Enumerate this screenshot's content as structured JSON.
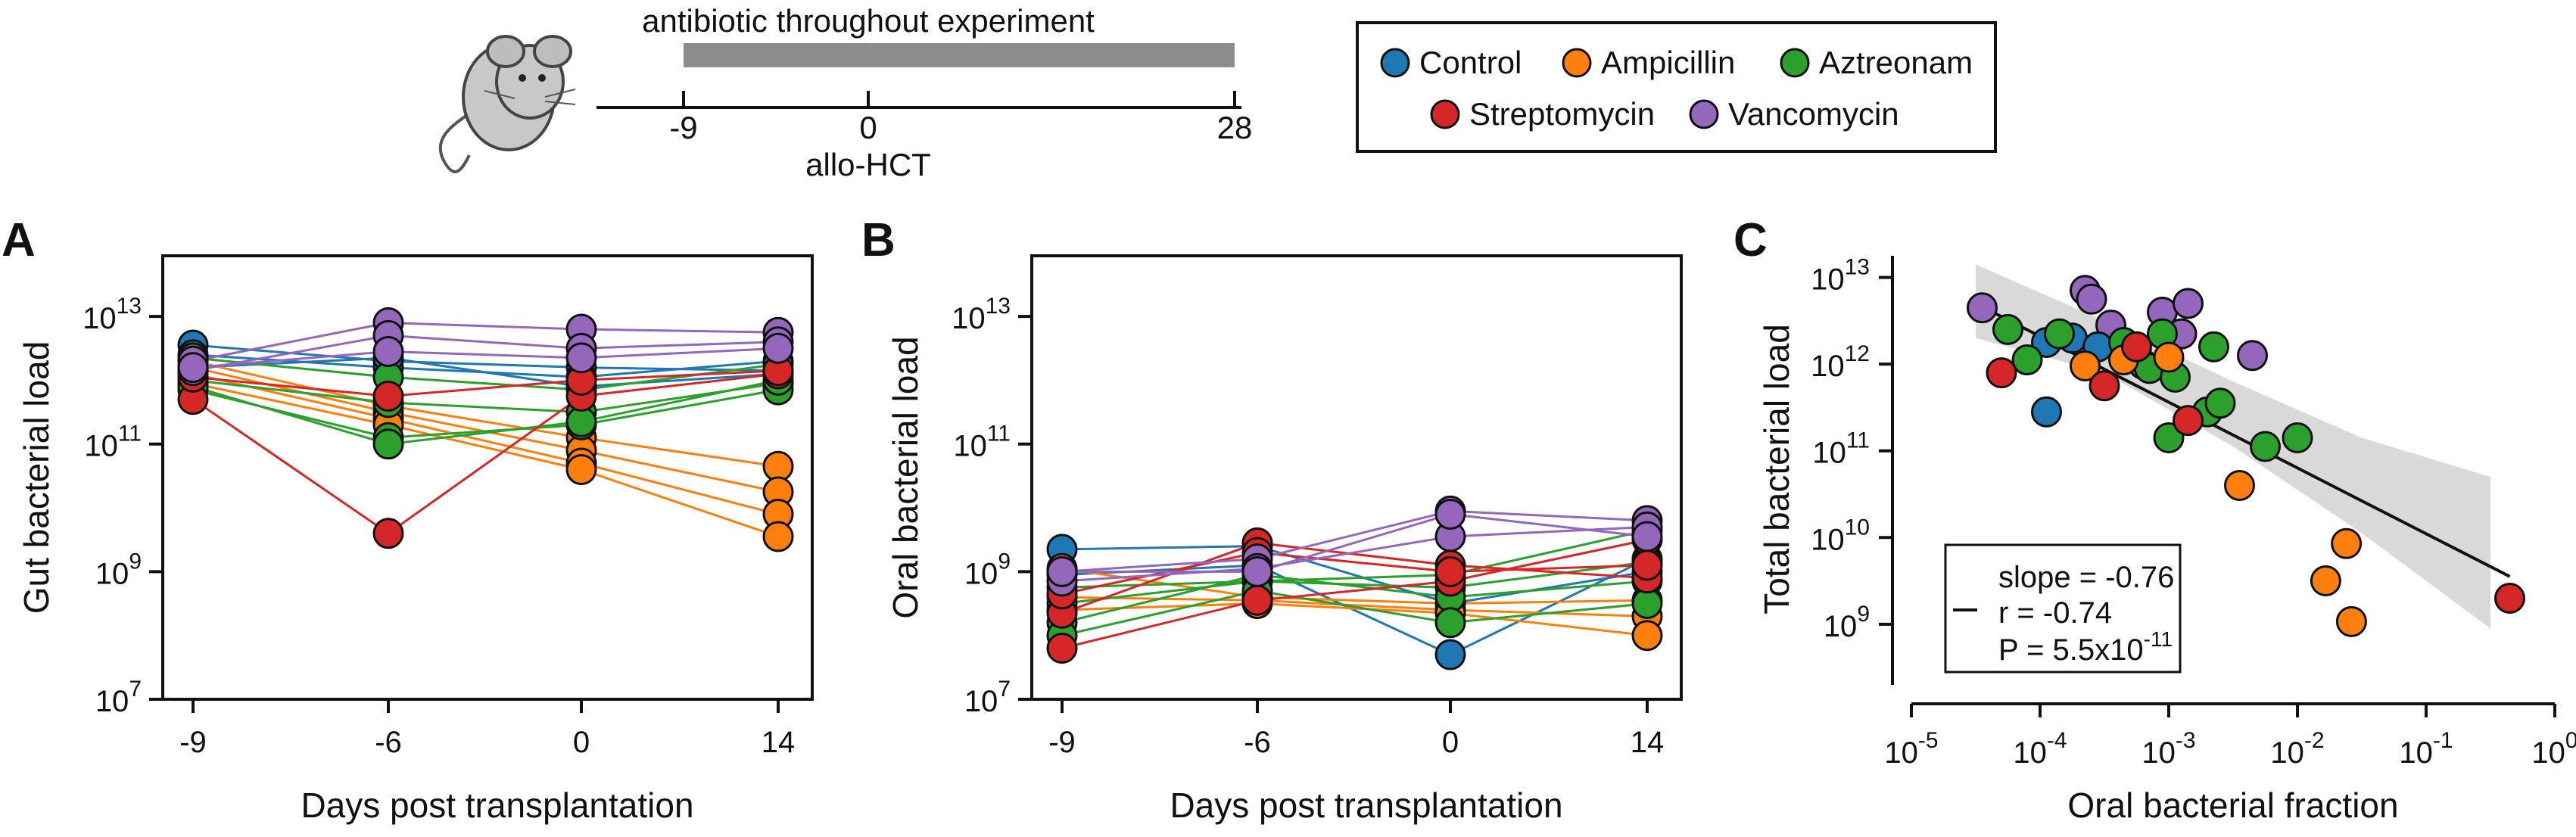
{
  "header": {
    "banner_label": "antibiotic throughout experiment",
    "timeline_ticks": [
      "-9",
      "0",
      "28"
    ],
    "event_label": "allo-HCT",
    "mouse_icon": "mouse-icon"
  },
  "legend": {
    "items": [
      {
        "name": "Control",
        "color": "#1f77b4"
      },
      {
        "name": "Ampicillin",
        "color": "#ff7f0e"
      },
      {
        "name": "Aztreonam",
        "color": "#2ca02c"
      },
      {
        "name": "Streptomycin",
        "color": "#d62728"
      },
      {
        "name": "Vancomycin",
        "color": "#9467bd"
      }
    ]
  },
  "chart_data": [
    {
      "panel": "A",
      "type": "line",
      "xlabel": "Days post transplantation",
      "ylabel": "Gut bacterial load",
      "x_tick_labels": [
        "-9",
        "-6",
        "0",
        "14"
      ],
      "y_scale": "log",
      "y_tick_exponents": [
        7,
        9,
        11,
        13
      ],
      "ylim_exponent": [
        7,
        13.95
      ],
      "grid": false,
      "series": [
        {
          "group": "Control",
          "values_log10": [
            12.55,
            12.3,
            12.2,
            12.15
          ]
        },
        {
          "group": "Control",
          "values_log10": [
            12.4,
            12.2,
            12.05,
            12.3
          ]
        },
        {
          "group": "Control",
          "values_log10": [
            12.2,
            12.35,
            11.9,
            12.1
          ]
        },
        {
          "group": "Ampicillin",
          "values_log10": [
            12.3,
            11.6,
            11.1,
            10.65
          ]
        },
        {
          "group": "Ampicillin",
          "values_log10": [
            12.2,
            11.5,
            10.9,
            10.25
          ]
        },
        {
          "group": "Ampicillin",
          "values_log10": [
            12.1,
            11.4,
            10.7,
            9.9
          ]
        },
        {
          "group": "Ampicillin",
          "values_log10": [
            11.95,
            11.3,
            10.6,
            9.55
          ]
        },
        {
          "group": "Aztreonam",
          "values_log10": [
            12.35,
            12.05,
            11.85,
            12.25
          ]
        },
        {
          "group": "Aztreonam",
          "values_log10": [
            12.0,
            11.65,
            11.5,
            11.95
          ]
        },
        {
          "group": "Aztreonam",
          "values_log10": [
            11.85,
            11.1,
            11.3,
            11.85
          ]
        },
        {
          "group": "Aztreonam",
          "values_log10": [
            11.9,
            11.0,
            11.35,
            12.0
          ]
        },
        {
          "group": "Streptomycin",
          "values_log10": [
            11.7,
            9.6,
            11.75,
            12.1
          ]
        },
        {
          "group": "Streptomycin",
          "values_log10": [
            12.05,
            11.75,
            12.0,
            12.15
          ]
        },
        {
          "group": "Vancomycin",
          "values_log10": [
            12.3,
            12.9,
            12.8,
            12.75
          ]
        },
        {
          "group": "Vancomycin",
          "values_log10": [
            12.15,
            12.7,
            12.5,
            12.6
          ]
        },
        {
          "group": "Vancomycin",
          "values_log10": [
            12.2,
            12.45,
            12.35,
            12.5
          ]
        }
      ]
    },
    {
      "panel": "B",
      "type": "line",
      "xlabel": "Days post transplantation",
      "ylabel": "Oral bacterial load",
      "x_tick_labels": [
        "-9",
        "-6",
        "0",
        "14"
      ],
      "y_scale": "log",
      "y_tick_exponents": [
        7,
        9,
        11,
        13
      ],
      "ylim_exponent": [
        7,
        13.95
      ],
      "grid": false,
      "series": [
        {
          "group": "Control",
          "values_log10": [
            9.35,
            9.4,
            8.5,
            9.0
          ]
        },
        {
          "group": "Control",
          "values_log10": [
            8.95,
            9.1,
            7.7,
            9.2
          ]
        },
        {
          "group": "Ampicillin",
          "values_log10": [
            9.05,
            8.6,
            8.5,
            8.55
          ]
        },
        {
          "group": "Ampicillin",
          "values_log10": [
            8.6,
            8.55,
            8.4,
            8.3
          ]
        },
        {
          "group": "Ampicillin",
          "values_log10": [
            8.4,
            8.5,
            8.35,
            8.0
          ]
        },
        {
          "group": "Aztreonam",
          "values_log10": [
            8.75,
            8.85,
            8.95,
            9.65
          ]
        },
        {
          "group": "Aztreonam",
          "values_log10": [
            8.5,
            8.85,
            8.75,
            9.15
          ]
        },
        {
          "group": "Aztreonam",
          "values_log10": [
            8.2,
            8.95,
            8.6,
            8.85
          ]
        },
        {
          "group": "Aztreonam",
          "values_log10": [
            8.0,
            8.7,
            8.2,
            8.5
          ]
        },
        {
          "group": "Streptomycin",
          "values_log10": [
            7.8,
            8.55,
            8.85,
            9.5
          ]
        },
        {
          "group": "Streptomycin",
          "values_log10": [
            8.35,
            9.45,
            9.1,
            8.9
          ]
        },
        {
          "group": "Streptomycin",
          "values_log10": [
            8.65,
            9.3,
            9.0,
            9.1
          ]
        },
        {
          "group": "Vancomycin",
          "values_log10": [
            9.0,
            9.2,
            9.95,
            9.8
          ]
        },
        {
          "group": "Vancomycin",
          "values_log10": [
            8.85,
            9.05,
            9.55,
            9.7
          ]
        },
        {
          "group": "Vancomycin",
          "values_log10": [
            9.0,
            9.0,
            9.9,
            9.55
          ]
        }
      ]
    },
    {
      "panel": "C",
      "type": "scatter",
      "xlabel": "Oral bacterial fraction",
      "ylabel": "Total bacterial load",
      "x_scale": "log",
      "y_scale": "log",
      "x_tick_exponents": [
        -5,
        -4,
        -3,
        -2,
        -1,
        0
      ],
      "y_tick_exponents": [
        9,
        10,
        11,
        12,
        13
      ],
      "xlim_exponent": [
        -5,
        0
      ],
      "ylim_exponent": [
        8.3,
        13.25
      ],
      "grid": false,
      "points": [
        {
          "group": "Vancomycin",
          "x_log10": -4.45,
          "y_log10": 12.65
        },
        {
          "group": "Vancomycin",
          "x_log10": -3.65,
          "y_log10": 12.85
        },
        {
          "group": "Vancomycin",
          "x_log10": -3.6,
          "y_log10": 12.75
        },
        {
          "group": "Vancomycin",
          "x_log10": -3.45,
          "y_log10": 12.45
        },
        {
          "group": "Vancomycin",
          "x_log10": -3.05,
          "y_log10": 12.6
        },
        {
          "group": "Vancomycin",
          "x_log10": -2.85,
          "y_log10": 12.7
        },
        {
          "group": "Vancomycin",
          "x_log10": -2.9,
          "y_log10": 12.35
        },
        {
          "group": "Vancomycin",
          "x_log10": -2.35,
          "y_log10": 12.1
        },
        {
          "group": "Vancomycin",
          "x_log10": -3.3,
          "y_log10": 12.15
        },
        {
          "group": "Control",
          "x_log10": -3.95,
          "y_log10": 12.25
        },
        {
          "group": "Control",
          "x_log10": -3.75,
          "y_log10": 12.3
        },
        {
          "group": "Control",
          "x_log10": -3.55,
          "y_log10": 12.2
        },
        {
          "group": "Control",
          "x_log10": -3.2,
          "y_log10": 12.0
        },
        {
          "group": "Control",
          "x_log10": -3.95,
          "y_log10": 11.45
        },
        {
          "group": "Aztreonam",
          "x_log10": -4.25,
          "y_log10": 12.4
        },
        {
          "group": "Aztreonam",
          "x_log10": -4.1,
          "y_log10": 12.05
        },
        {
          "group": "Aztreonam",
          "x_log10": -3.85,
          "y_log10": 12.35
        },
        {
          "group": "Aztreonam",
          "x_log10": -3.35,
          "y_log10": 12.25
        },
        {
          "group": "Aztreonam",
          "x_log10": -3.05,
          "y_log10": 12.35
        },
        {
          "group": "Aztreonam",
          "x_log10": -3.15,
          "y_log10": 11.95
        },
        {
          "group": "Aztreonam",
          "x_log10": -2.95,
          "y_log10": 11.85
        },
        {
          "group": "Aztreonam",
          "x_log10": -2.65,
          "y_log10": 12.2
        },
        {
          "group": "Aztreonam",
          "x_log10": -2.7,
          "y_log10": 11.45
        },
        {
          "group": "Aztreonam",
          "x_log10": -2.6,
          "y_log10": 11.55
        },
        {
          "group": "Aztreonam",
          "x_log10": -3.0,
          "y_log10": 11.15
        },
        {
          "group": "Aztreonam",
          "x_log10": -2.25,
          "y_log10": 11.05
        },
        {
          "group": "Aztreonam",
          "x_log10": -2.0,
          "y_log10": 11.15
        },
        {
          "group": "Ampicillin",
          "x_log10": -3.35,
          "y_log10": 12.05
        },
        {
          "group": "Ampicillin",
          "x_log10": -3.65,
          "y_log10": 11.98
        },
        {
          "group": "Ampicillin",
          "x_log10": -3.0,
          "y_log10": 12.08
        },
        {
          "group": "Ampicillin",
          "x_log10": -2.45,
          "y_log10": 10.6
        },
        {
          "group": "Ampicillin",
          "x_log10": -1.62,
          "y_log10": 9.93
        },
        {
          "group": "Ampicillin",
          "x_log10": -1.78,
          "y_log10": 9.5
        },
        {
          "group": "Ampicillin",
          "x_log10": -1.58,
          "y_log10": 9.03
        },
        {
          "group": "Streptomycin",
          "x_log10": -4.3,
          "y_log10": 11.9
        },
        {
          "group": "Streptomycin",
          "x_log10": -3.5,
          "y_log10": 11.75
        },
        {
          "group": "Streptomycin",
          "x_log10": -3.25,
          "y_log10": 12.2
        },
        {
          "group": "Streptomycin",
          "x_log10": -2.85,
          "y_log10": 11.35
        },
        {
          "group": "Streptomycin",
          "x_log10": -0.35,
          "y_log10": 9.3
        }
      ],
      "fit": {
        "slope": -0.76,
        "x0_log10": -4.5,
        "y0_log10": 12.7,
        "x1_log10": -0.35,
        "y1_log10": 9.55
      },
      "ci_band": {
        "x_log10": [
          -4.5,
          -3.5,
          -2.5,
          -1.5,
          -0.5
        ],
        "upper_log10": [
          13.15,
          12.5,
          11.8,
          11.15,
          10.7
        ],
        "lower_log10": [
          12.3,
          11.9,
          11.05,
          10.05,
          8.95
        ]
      },
      "stats": {
        "slope_text": "slope = -0.76",
        "r_text": "r = -0.74",
        "p_text_base": "P = 5.5x10",
        "p_text_exp": "-11"
      }
    }
  ]
}
